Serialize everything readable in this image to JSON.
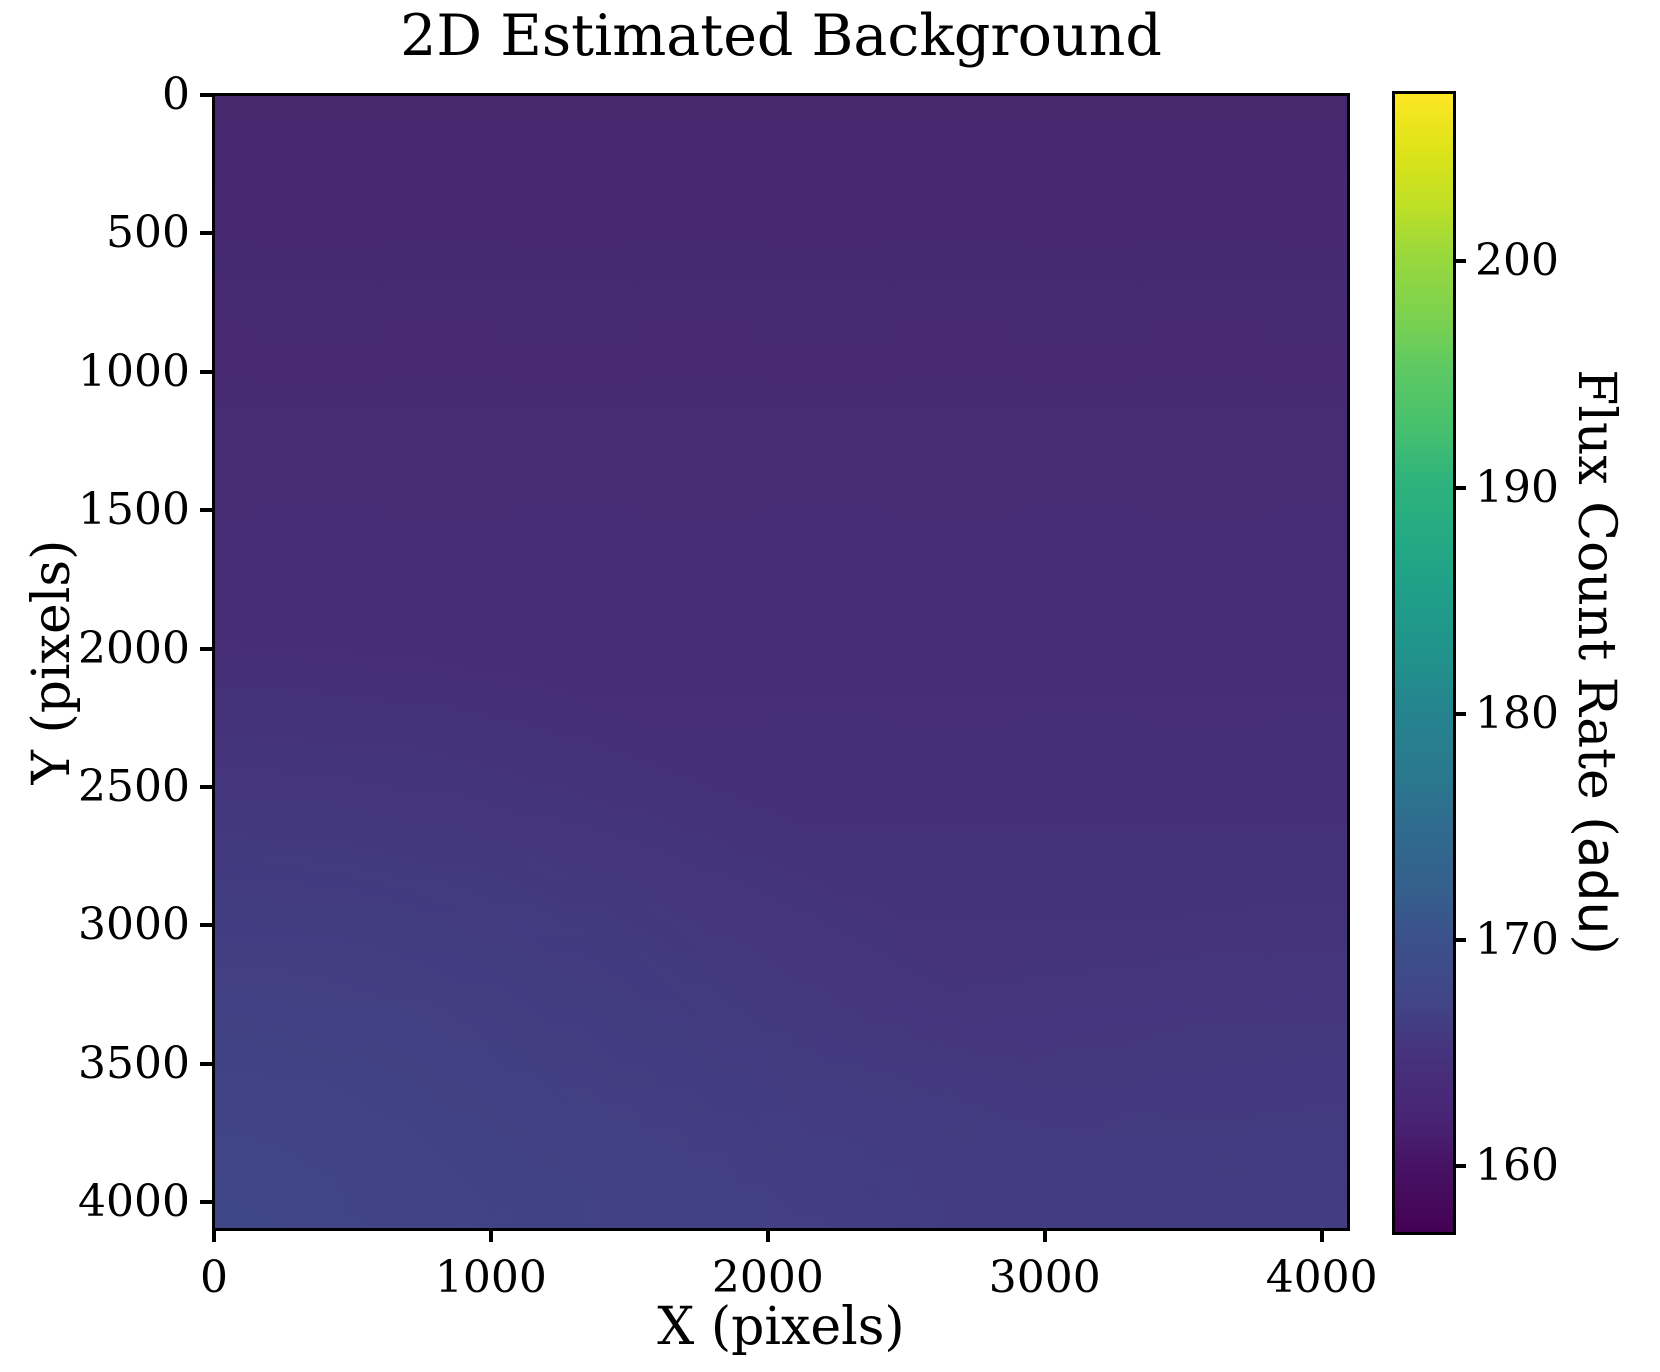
{
  "title": "2D Estimated Background",
  "x_axis": {
    "label": "X (pixels)",
    "tick_values": [
      0,
      1000,
      2000,
      3000,
      4000
    ],
    "data_range": [
      0,
      4095
    ]
  },
  "y_axis": {
    "label": "Y (pixels)",
    "tick_values": [
      0,
      500,
      1000,
      1500,
      2000,
      2500,
      3000,
      3500,
      4000
    ],
    "data_range": [
      0,
      4093
    ],
    "origin": "top",
    "inverted": true
  },
  "colorbar": {
    "label": "Flux Count Rate (adu)",
    "label_parts": {
      "prefix": "Flux Count Rate (",
      "unit": "adu",
      "suffix": ")"
    },
    "tick_values": [
      200,
      190,
      180,
      170,
      160
    ],
    "value_range": [
      157.1,
      207.4
    ],
    "colormap": "viridis"
  },
  "chart_data": {
    "type": "heatmap",
    "title": "2D Estimated Background",
    "xlabel": "X (pixels)",
    "ylabel": "Y (pixels)",
    "x_range": [
      0,
      4095
    ],
    "y_range": [
      0,
      4093
    ],
    "y_axis_inverted": true,
    "colormap": "viridis",
    "colorbar_label": "Flux Count Rate (adu)",
    "colorbar_ticks": [
      160,
      170,
      180,
      190,
      200
    ],
    "color_scale_range": [
      157,
      207.5
    ],
    "grid": false,
    "x_sample_points": [
      0,
      1000,
      2000,
      3000,
      4000
    ],
    "y_sample_points": [
      0,
      1000,
      2000,
      3000,
      4000
    ],
    "values_adu_estimated": [
      [
        161.5,
        161.0,
        160.5,
        160.5,
        161.0
      ],
      [
        163.0,
        162.0,
        161.5,
        161.5,
        162.0
      ],
      [
        164.5,
        163.5,
        163.0,
        162.5,
        163.0
      ],
      [
        166.5,
        165.0,
        164.0,
        164.0,
        164.5
      ],
      [
        169.0,
        167.5,
        166.5,
        166.0,
        166.5
      ]
    ],
    "notes": "Smooth 2D background model: darkest (~160 adu, dark purple) along the top, gradually brightening toward the bottom; bluest/brightest corner (~169 adu) at bottom-left."
  }
}
